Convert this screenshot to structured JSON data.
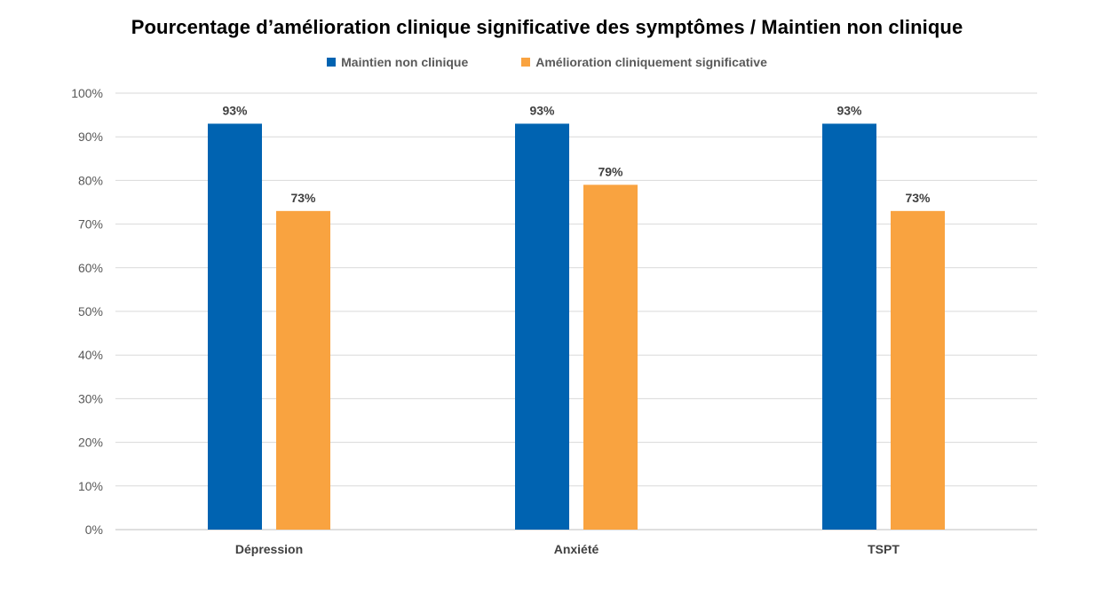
{
  "chart_data": {
    "type": "bar",
    "title": "Pourcentage d’amélioration clinique significative des symptômes / Maintien non clinique",
    "categories": [
      "Dépression",
      "Anxiété",
      "TSPT"
    ],
    "series": [
      {
        "name": "Maintien non clinique",
        "values": [
          93,
          93,
          93
        ],
        "labels": [
          "93%",
          "93%",
          "93%"
        ],
        "color": "#0063B1"
      },
      {
        "name": "Amélioration cliniquement significative",
        "values": [
          73,
          79,
          73
        ],
        "labels": [
          "73%",
          "79%",
          "73%"
        ],
        "color": "#F9A340"
      }
    ],
    "xlabel": "",
    "ylabel": "",
    "ylim": [
      0,
      100
    ],
    "yticks": [
      0,
      10,
      20,
      30,
      40,
      50,
      60,
      70,
      80,
      90,
      100
    ],
    "ytick_labels": [
      "0%",
      "10%",
      "20%",
      "30%",
      "40%",
      "50%",
      "60%",
      "70%",
      "80%",
      "90%",
      "100%"
    ],
    "grid": true,
    "legend_position": "top",
    "gridline_color": "#D9D9D9",
    "axis_color": "#BFBFBF"
  }
}
